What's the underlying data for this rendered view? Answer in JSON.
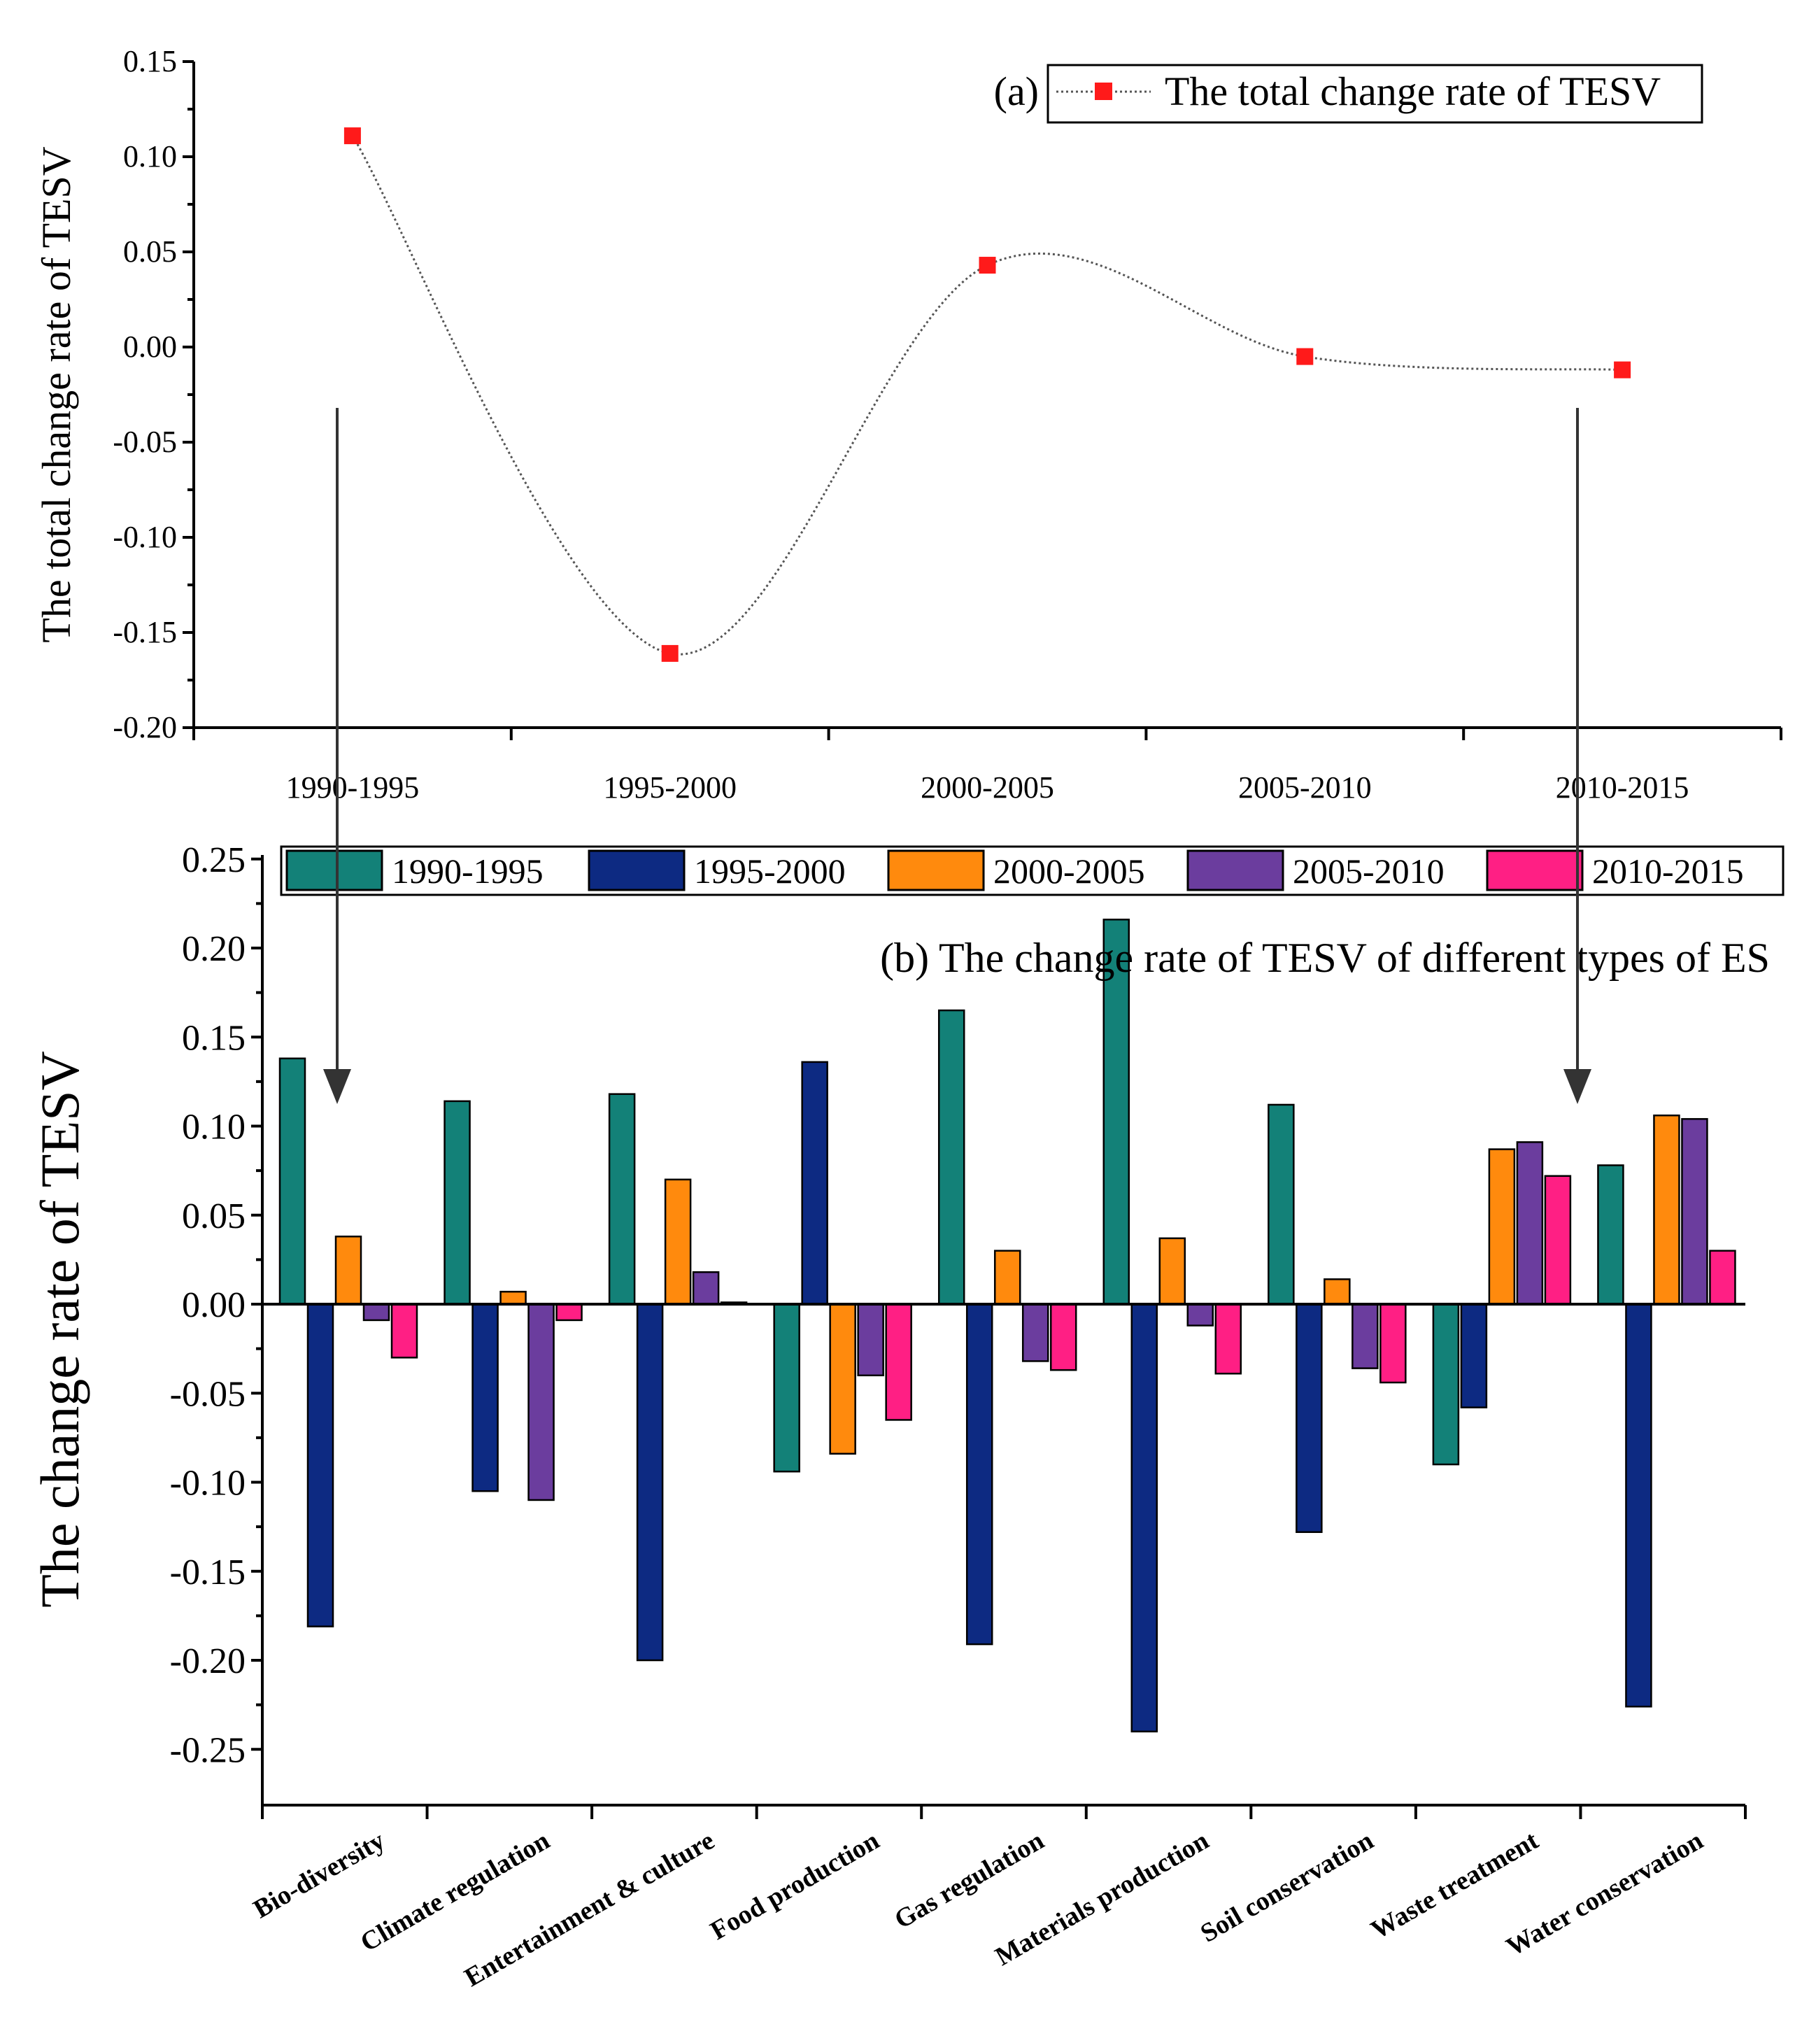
{
  "chart_data": [
    {
      "type": "line",
      "panel_label": "(a)",
      "legend": "The total change rate of TESV",
      "ylabel": "The total change rate of TESV",
      "xlabel": "",
      "categories": [
        "1990-1995",
        "1995-2000",
        "2000-2005",
        "2005-2010",
        "2010-2015"
      ],
      "values": [
        0.111,
        -0.161,
        0.043,
        -0.005,
        -0.012
      ],
      "ylim": [
        -0.2,
        0.15
      ],
      "yticks": [
        "0.15",
        "0.10",
        "0.05",
        "0.00",
        "-0.05",
        "-0.10",
        "-0.15",
        "-0.20"
      ],
      "ytick_values": [
        0.15,
        0.1,
        0.05,
        0.0,
        -0.05,
        -0.1,
        -0.15,
        -0.2
      ],
      "marker_color": "#ff1a1a",
      "line_style": "dotted smooth spline"
    },
    {
      "type": "bar",
      "title": "(b) The change rate of TESV of different types of ES",
      "ylabel": "The change rate of TESV",
      "xlabel": "",
      "categories": [
        "Bio-diversity",
        "Climate regulation",
        "Entertainment & culture",
        "Food production",
        "Gas regulation",
        "Materials production",
        "Soil conservation",
        "Waste treatment",
        "Water conservation"
      ],
      "ylim": [
        -0.28,
        0.25
      ],
      "yticks": [
        "0.25",
        "0.20",
        "0.15",
        "0.10",
        "0.05",
        "0.00",
        "-0.05",
        "-0.10",
        "-0.15",
        "-0.20",
        "-0.25"
      ],
      "ytick_values": [
        0.25,
        0.2,
        0.15,
        0.1,
        0.05,
        0.0,
        -0.05,
        -0.1,
        -0.15,
        -0.2,
        -0.25
      ],
      "series": [
        {
          "name": "1990-1995",
          "color": "#138178",
          "values": [
            0.138,
            0.114,
            0.118,
            -0.094,
            0.165,
            0.216,
            0.112,
            -0.09,
            0.078
          ]
        },
        {
          "name": "1995-2000",
          "color": "#0d2a82",
          "values": [
            -0.181,
            -0.105,
            -0.2,
            0.136,
            -0.191,
            -0.24,
            -0.128,
            -0.058,
            -0.226
          ]
        },
        {
          "name": "2000-2005",
          "color": "#ff8a0d",
          "values": [
            0.038,
            0.007,
            0.07,
            -0.084,
            0.03,
            0.037,
            0.014,
            0.087,
            0.106
          ]
        },
        {
          "name": "2005-2010",
          "color": "#6b3d9e",
          "values": [
            -0.009,
            -0.11,
            0.018,
            -0.04,
            -0.032,
            -0.012,
            -0.036,
            0.091,
            0.104
          ]
        },
        {
          "name": "2010-2015",
          "color": "#ff1f84",
          "values": [
            -0.03,
            -0.009,
            0.001,
            -0.065,
            -0.037,
            -0.039,
            -0.044,
            0.072,
            0.03
          ]
        }
      ]
    }
  ]
}
